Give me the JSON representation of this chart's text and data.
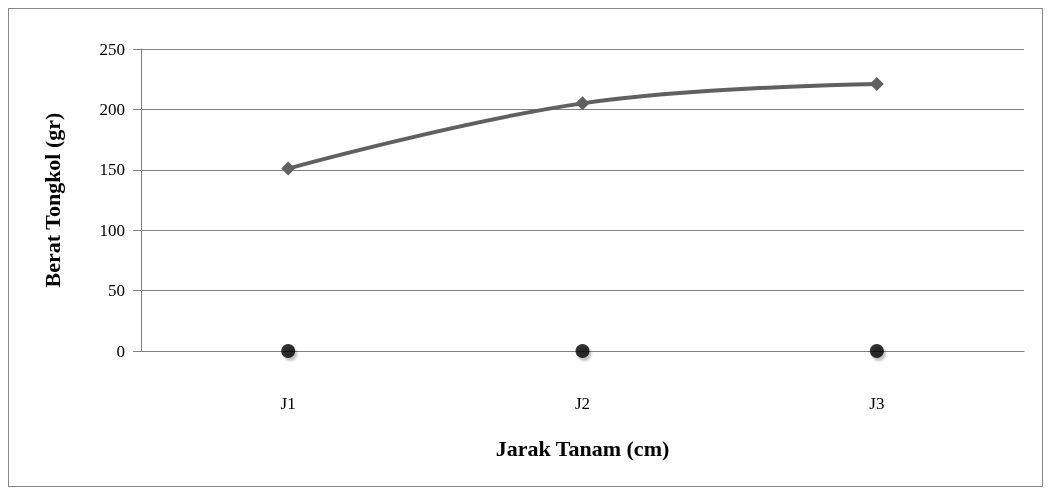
{
  "chart_data": {
    "type": "line",
    "xlabel": "Jarak Tanam (cm)",
    "ylabel": "Berat Tongkol (gr)",
    "categories": [
      "J1",
      "J2",
      "J3"
    ],
    "series": [
      {
        "color": "#606060",
        "marker": "diamond",
        "values": [
          151,
          205,
          221
        ]
      },
      {
        "type": "scatter",
        "color": "#000000",
        "marker": "circle",
        "values": [
          0,
          0,
          0
        ]
      }
    ],
    "ylim": [
      0,
      250
    ],
    "yticks": [
      0,
      50,
      100,
      150,
      200,
      250
    ],
    "grid": "y"
  }
}
